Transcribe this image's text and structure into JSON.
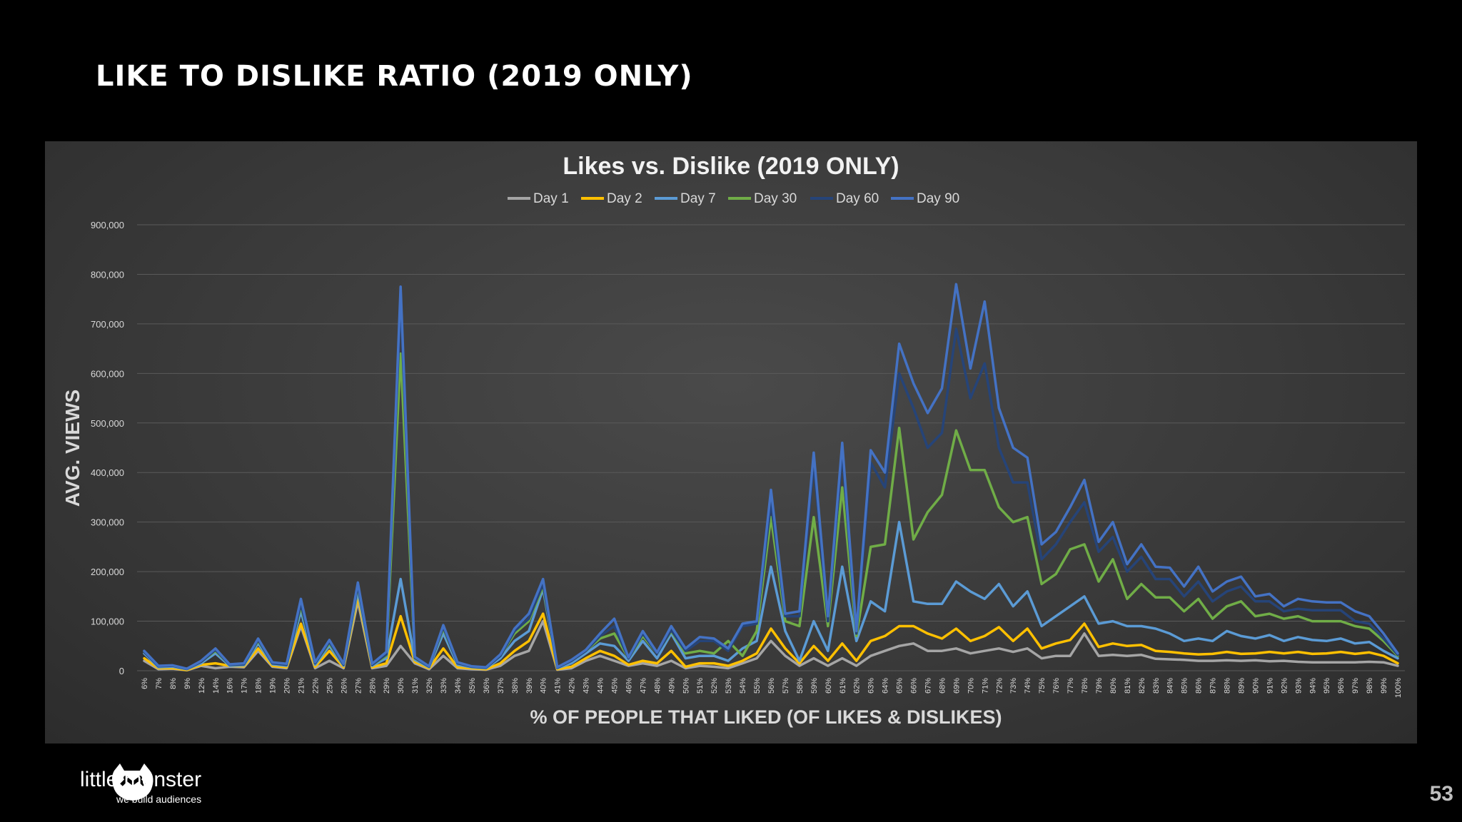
{
  "slide": {
    "title": "LIKE TO DISLIKE RATIO (2019 ONLY)",
    "page_number": "53"
  },
  "brand": {
    "name": "little monster",
    "tagline": "we build audiences"
  },
  "chart_data": {
    "type": "line",
    "title": "Likes vs. Dislike (2019 ONLY)",
    "xlabel": "% OF PEOPLE THAT LIKED (OF LIKES & DISLIKES)",
    "ylabel": "AVG. VIEWS",
    "ylim": [
      0,
      900000
    ],
    "yticks": [
      0,
      100000,
      200000,
      300000,
      400000,
      500000,
      600000,
      700000,
      800000,
      900000
    ],
    "ytick_labels": [
      "0",
      "100,000",
      "200,000",
      "300,000",
      "400,000",
      "500,000",
      "600,000",
      "700,000",
      "800,000",
      "900,000"
    ],
    "grid": true,
    "legend": "top-center",
    "categories": [
      "6%",
      "7%",
      "8%",
      "9%",
      "12%",
      "14%",
      "16%",
      "17%",
      "18%",
      "19%",
      "20%",
      "21%",
      "22%",
      "25%",
      "26%",
      "27%",
      "28%",
      "29%",
      "30%",
      "31%",
      "32%",
      "33%",
      "34%",
      "35%",
      "36%",
      "37%",
      "38%",
      "39%",
      "40%",
      "41%",
      "42%",
      "43%",
      "44%",
      "45%",
      "46%",
      "47%",
      "48%",
      "49%",
      "50%",
      "51%",
      "52%",
      "53%",
      "54%",
      "55%",
      "56%",
      "57%",
      "58%",
      "59%",
      "60%",
      "61%",
      "62%",
      "63%",
      "64%",
      "65%",
      "66%",
      "67%",
      "68%",
      "69%",
      "70%",
      "71%",
      "72%",
      "73%",
      "74%",
      "75%",
      "76%",
      "77%",
      "78%",
      "79%",
      "80%",
      "81%",
      "82%",
      "83%",
      "84%",
      "85%",
      "86%",
      "87%",
      "88%",
      "89%",
      "90%",
      "91%",
      "92%",
      "93%",
      "94%",
      "95%",
      "96%",
      "97%",
      "98%",
      "99%",
      "100%"
    ],
    "series": [
      {
        "name": "Day 1",
        "color": "#a5a5a5",
        "values": [
          20000,
          3000,
          4000,
          1000,
          10000,
          5000,
          8000,
          7000,
          40000,
          8000,
          5000,
          90000,
          5000,
          20000,
          5000,
          140000,
          5000,
          10000,
          50000,
          15000,
          3000,
          30000,
          5000,
          3000,
          2000,
          10000,
          30000,
          40000,
          100000,
          2000,
          5000,
          20000,
          30000,
          20000,
          10000,
          15000,
          10000,
          20000,
          5000,
          10000,
          8000,
          5000,
          15000,
          25000,
          60000,
          30000,
          10000,
          25000,
          10000,
          25000,
          10000,
          30000,
          40000,
          50000,
          55000,
          40000,
          40000,
          45000,
          35000,
          40000,
          45000,
          38000,
          45000,
          25000,
          30000,
          30000,
          75000,
          30000,
          32000,
          30000,
          32000,
          24000,
          23000,
          22000,
          20000,
          20000,
          21000,
          20000,
          21000,
          19000,
          20000,
          18000,
          17000,
          17000,
          17000,
          17000,
          18000,
          17000,
          10000
        ]
      },
      {
        "name": "Day 2",
        "color": "#ffc000",
        "values": [
          25000,
          5000,
          5000,
          1500,
          12000,
          15000,
          10000,
          9000,
          45000,
          10000,
          7000,
          95000,
          8000,
          40000,
          7000,
          150000,
          7000,
          15000,
          110000,
          18000,
          5000,
          45000,
          7000,
          5000,
          3000,
          15000,
          40000,
          60000,
          115000,
          3000,
          8000,
          25000,
          40000,
          30000,
          12000,
          20000,
          15000,
          40000,
          8000,
          15000,
          15000,
          10000,
          20000,
          35000,
          85000,
          45000,
          15000,
          50000,
          20000,
          55000,
          20000,
          60000,
          70000,
          90000,
          90000,
          75000,
          65000,
          85000,
          60000,
          70000,
          88000,
          60000,
          85000,
          45000,
          55000,
          62000,
          95000,
          48000,
          55000,
          50000,
          52000,
          40000,
          38000,
          35000,
          33000,
          34000,
          38000,
          34000,
          35000,
          38000,
          35000,
          38000,
          34000,
          35000,
          38000,
          34000,
          37000,
          30000,
          15000
        ]
      },
      {
        "name": "Day 7",
        "color": "#5b9bd5",
        "values": [
          35000,
          7000,
          8000,
          3000,
          15000,
          35000,
          10000,
          11000,
          55000,
          13000,
          10000,
          120000,
          12000,
          50000,
          10000,
          160000,
          10000,
          25000,
          185000,
          22000,
          7000,
          75000,
          12000,
          7000,
          5000,
          25000,
          60000,
          80000,
          165000,
          5000,
          15000,
          35000,
          55000,
          50000,
          20000,
          60000,
          25000,
          75000,
          25000,
          30000,
          30000,
          20000,
          45000,
          60000,
          210000,
          80000,
          20000,
          100000,
          40000,
          210000,
          60000,
          140000,
          120000,
          300000,
          140000,
          135000,
          135000,
          180000,
          160000,
          145000,
          175000,
          130000,
          160000,
          90000,
          110000,
          130000,
          150000,
          95000,
          100000,
          90000,
          90000,
          85000,
          75000,
          60000,
          65000,
          60000,
          80000,
          70000,
          65000,
          72000,
          60000,
          68000,
          62000,
          60000,
          65000,
          55000,
          58000,
          40000,
          25000
        ]
      },
      {
        "name": "Day 30",
        "color": "#70ad47",
        "values": [
          38000,
          9000,
          10000,
          3500,
          18000,
          40000,
          12000,
          13000,
          60000,
          15000,
          12000,
          130000,
          15000,
          55000,
          12000,
          170000,
          12000,
          30000,
          640000,
          25000,
          8000,
          85000,
          15000,
          8000,
          6000,
          30000,
          75000,
          100000,
          170000,
          6000,
          20000,
          40000,
          65000,
          75000,
          25000,
          70000,
          35000,
          80000,
          35000,
          40000,
          35000,
          60000,
          30000,
          80000,
          310000,
          100000,
          90000,
          310000,
          90000,
          370000,
          70000,
          250000,
          255000,
          490000,
          265000,
          320000,
          355000,
          485000,
          405000,
          405000,
          330000,
          300000,
          310000,
          175000,
          195000,
          245000,
          255000,
          180000,
          225000,
          145000,
          175000,
          148000,
          148000,
          120000,
          145000,
          105000,
          130000,
          140000,
          110000,
          115000,
          105000,
          110000,
          100000,
          100000,
          100000,
          90000,
          85000,
          60000,
          30000
        ]
      },
      {
        "name": "Day 60",
        "color": "#264478",
        "values": [
          38000,
          9000,
          10000,
          3500,
          18000,
          42000,
          12000,
          13000,
          62000,
          15000,
          12000,
          135000,
          15000,
          58000,
          12000,
          172000,
          12000,
          33000,
          750000,
          26000,
          8000,
          88000,
          15000,
          8000,
          6000,
          30000,
          80000,
          105000,
          175000,
          6000,
          20000,
          40000,
          70000,
          90000,
          25000,
          75000,
          35000,
          82000,
          40000,
          60000,
          60000,
          40000,
          90000,
          95000,
          340000,
          110000,
          110000,
          420000,
          100000,
          440000,
          75000,
          420000,
          370000,
          600000,
          530000,
          450000,
          480000,
          690000,
          550000,
          620000,
          450000,
          380000,
          380000,
          225000,
          255000,
          300000,
          340000,
          240000,
          270000,
          200000,
          230000,
          185000,
          185000,
          150000,
          180000,
          140000,
          160000,
          170000,
          140000,
          140000,
          120000,
          125000,
          122000,
          122000,
          122000,
          100000,
          95000,
          65000,
          32000
        ]
      },
      {
        "name": "Day 90",
        "color": "#4472c4",
        "values": [
          40000,
          10000,
          11000,
          4000,
          20000,
          45000,
          13000,
          15000,
          65000,
          17000,
          14000,
          145000,
          17000,
          62000,
          14000,
          178000,
          14000,
          38000,
          775000,
          28000,
          9000,
          92000,
          17000,
          9000,
          7000,
          33000,
          85000,
          115000,
          185000,
          7000,
          22000,
          42000,
          75000,
          105000,
          27000,
          80000,
          37000,
          90000,
          45000,
          68000,
          65000,
          45000,
          95000,
          100000,
          365000,
          115000,
          120000,
          440000,
          110000,
          460000,
          80000,
          445000,
          400000,
          660000,
          580000,
          520000,
          570000,
          780000,
          610000,
          745000,
          530000,
          450000,
          430000,
          255000,
          280000,
          330000,
          385000,
          260000,
          300000,
          215000,
          255000,
          210000,
          208000,
          170000,
          210000,
          160000,
          180000,
          190000,
          150000,
          155000,
          130000,
          145000,
          140000,
          138000,
          138000,
          120000,
          110000,
          75000,
          35000
        ]
      }
    ]
  }
}
